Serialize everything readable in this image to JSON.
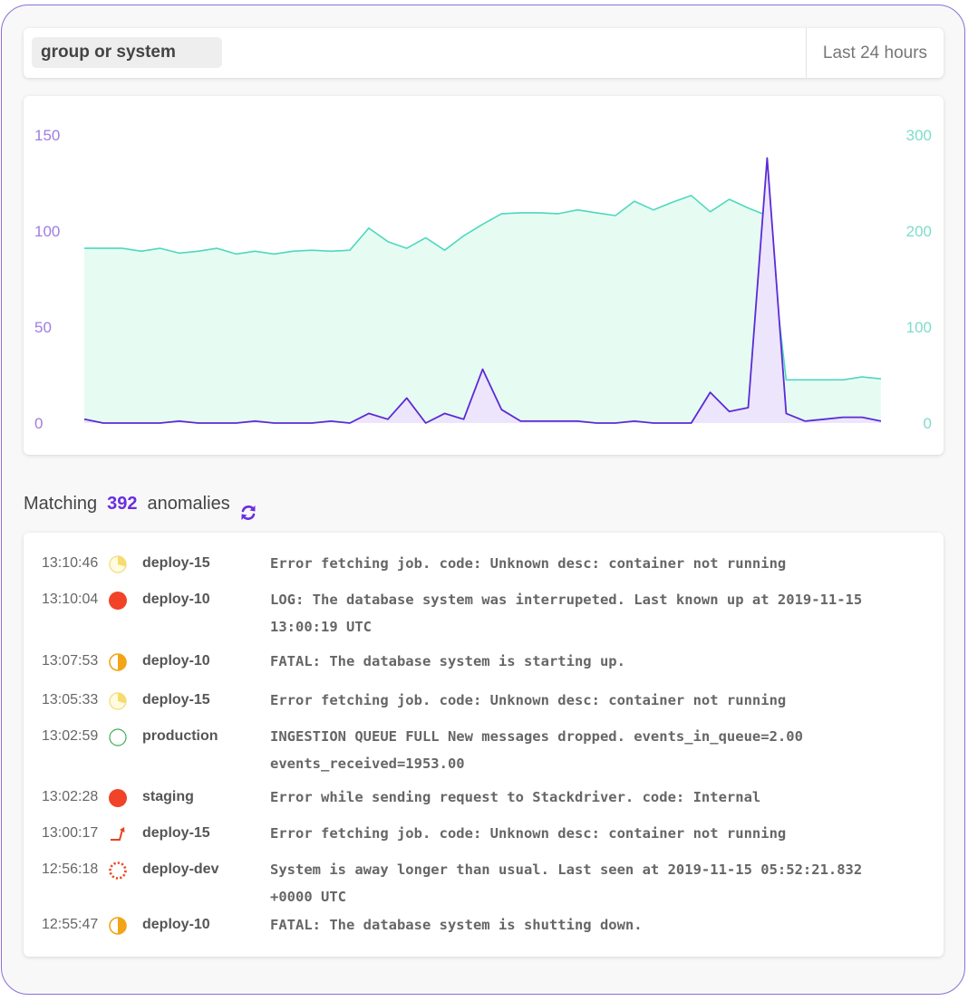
{
  "search": {
    "placeholder": "group or system"
  },
  "time_range": {
    "label": "Last 24 hours"
  },
  "summary": {
    "prefix": "Matching",
    "count": "392",
    "suffix": "anomalies"
  },
  "colors": {
    "accent": "#6a2ee0",
    "teal": "#4fd8bf",
    "teal_fill": "#e6fcf2",
    "purple_fill": "#ede5fb"
  },
  "chart_data": {
    "type": "area",
    "left_axis": {
      "ticks": [
        "150",
        "100",
        "50",
        "0"
      ],
      "range": [
        0,
        150
      ],
      "color": "#a07de0"
    },
    "right_axis": {
      "ticks": [
        "300",
        "200",
        "100",
        "0"
      ],
      "range": [
        0,
        300
      ],
      "color": "#7fdcc8"
    },
    "series": [
      {
        "axis": "right",
        "color": "#4fd8bf",
        "values": [
          182,
          182,
          182,
          179,
          182,
          177,
          179,
          182,
          176,
          179,
          176,
          179,
          180,
          179,
          180,
          203,
          189,
          182,
          193,
          180,
          195,
          207,
          218,
          219,
          219,
          218,
          222,
          219,
          216,
          231,
          222,
          230,
          237,
          220,
          233,
          224,
          216,
          45,
          45,
          45,
          45,
          48,
          46
        ]
      },
      {
        "axis": "left",
        "color": "#5b2bd6",
        "values": [
          2,
          0,
          0,
          0,
          0,
          1,
          0,
          0,
          0,
          1,
          0,
          0,
          0,
          1,
          0,
          5,
          2,
          13,
          0,
          5,
          2,
          28,
          7,
          1,
          1,
          1,
          1,
          0,
          0,
          1,
          0,
          0,
          0,
          16,
          6,
          8,
          138,
          5,
          1,
          2,
          3,
          3,
          1
        ]
      }
    ]
  },
  "anomalies": [
    {
      "time": "13:10:46",
      "status": "pie-light",
      "system": "deploy-15",
      "message": "Error fetching job. code: Unknown desc: container not running"
    },
    {
      "time": "13:10:04",
      "status": "red-dot",
      "system": "deploy-10",
      "message": "LOG: The database system was interrupeted. Last known up at 2019-11-15 13:00:19 UTC"
    },
    {
      "time": "13:07:53",
      "status": "half-orange",
      "system": "deploy-10",
      "message": "FATAL: The database system is starting up."
    },
    {
      "time": "13:05:33",
      "status": "pie-light",
      "system": "deploy-15",
      "message": "Error fetching job. code: Unknown desc: container not running"
    },
    {
      "time": "13:02:59",
      "status": "green-ring",
      "system": "production",
      "message": "INGESTION QUEUE FULL New messages dropped. events_in_queue=2.00 events_received=1953.00"
    },
    {
      "time": "13:02:28",
      "status": "red-dot",
      "system": "staging",
      "message": "Error while sending request to Stackdriver.  code: Internal"
    },
    {
      "time": "13:00:17",
      "status": "spike-arrow",
      "system": "deploy-15",
      "message": "Error fetching job. code: Unknown desc: container not running"
    },
    {
      "time": "12:56:18",
      "status": "dashed-ring",
      "system": "deploy-dev",
      "message": "System is away longer than usual. Last seen at 2019-11-15 05:52:21.832 +0000 UTC"
    },
    {
      "time": "12:55:47",
      "status": "half-orange",
      "system": "deploy-10",
      "message": "FATAL: The database system is shutting down."
    }
  ]
}
